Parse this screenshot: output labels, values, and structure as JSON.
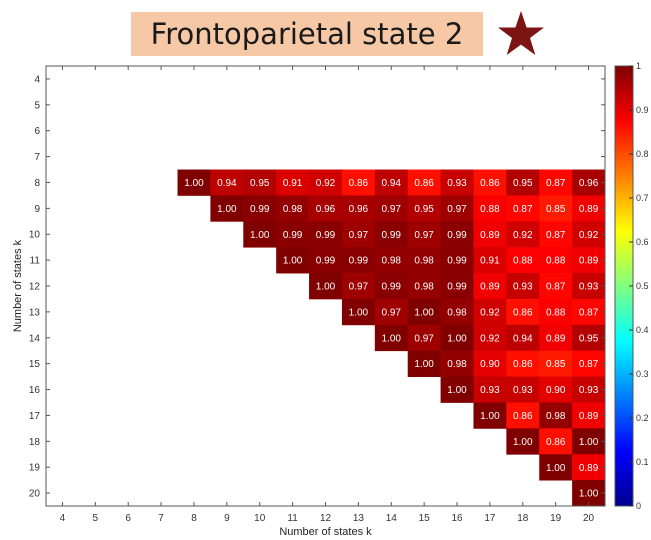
{
  "header": {
    "title": "Frontoparietal state 2",
    "marker_icon": "star-icon",
    "marker_color": "#7d1414"
  },
  "chart_data": {
    "type": "heatmap",
    "title": "Frontoparietal state 2",
    "xlabel": "Number of states k",
    "ylabel": "Number of states k",
    "x": [
      4,
      5,
      6,
      7,
      8,
      9,
      10,
      11,
      12,
      13,
      14,
      15,
      16,
      17,
      18,
      19,
      20
    ],
    "y": [
      4,
      5,
      6,
      7,
      8,
      9,
      10,
      11,
      12,
      13,
      14,
      15,
      16,
      17,
      18,
      19,
      20
    ],
    "y_direction": "top-to-bottom",
    "colorbar": {
      "range": [
        0,
        1
      ],
      "ticks": [
        "0",
        "0.1",
        "0.2",
        "0.3",
        "0.4",
        "0.5",
        "0.6",
        "0.7",
        "0.8",
        "0.9",
        "1"
      ],
      "colormap": "jet",
      "placement": "right"
    },
    "grid": false,
    "rows": [
      {
        "k": 8,
        "start_x": 8,
        "values": [
          "1.00",
          "0.94",
          "0.95",
          "0.91",
          "0.92",
          "0.86",
          "0.94",
          "0.86",
          "0.93",
          "0.86",
          "0.95",
          "0.87",
          "0.96"
        ]
      },
      {
        "k": 9,
        "start_x": 9,
        "values": [
          "1.00",
          "0.99",
          "0.98",
          "0.96",
          "0.96",
          "0.97",
          "0.95",
          "0.97",
          "0.88",
          "0.87",
          "0.85",
          "0.89"
        ]
      },
      {
        "k": 10,
        "start_x": 10,
        "values": [
          "1.00",
          "0.99",
          "0.99",
          "0.97",
          "0.99",
          "0.97",
          "0.99",
          "0.89",
          "0.92",
          "0.87",
          "0.92"
        ]
      },
      {
        "k": 11,
        "start_x": 11,
        "values": [
          "1.00",
          "0.99",
          "0.99",
          "0.98",
          "0.98",
          "0.99",
          "0.91",
          "0.88",
          "0.88",
          "0.89"
        ]
      },
      {
        "k": 12,
        "start_x": 12,
        "values": [
          "1.00",
          "0.97",
          "0.99",
          "0.98",
          "0.99",
          "0.89",
          "0.93",
          "0.87",
          "0.93"
        ]
      },
      {
        "k": 13,
        "start_x": 13,
        "values": [
          "1.00",
          "0.97",
          "1.00",
          "0.98",
          "0.92",
          "0.86",
          "0.88",
          "0.87"
        ]
      },
      {
        "k": 14,
        "start_x": 14,
        "values": [
          "1.00",
          "0.97",
          "1.00",
          "0.92",
          "0.94",
          "0.89",
          "0.95"
        ]
      },
      {
        "k": 15,
        "start_x": 15,
        "values": [
          "1.00",
          "0.98",
          "0.90",
          "0.86",
          "0.85",
          "0.87"
        ]
      },
      {
        "k": 16,
        "start_x": 16,
        "values": [
          "1.00",
          "0.93",
          "0.93",
          "0.90",
          "0.93"
        ]
      },
      {
        "k": 17,
        "start_x": 17,
        "values": [
          "1.00",
          "0.86",
          "0.98",
          "0.89"
        ]
      },
      {
        "k": 18,
        "start_x": 18,
        "values": [
          "1.00",
          "0.86",
          "1.00"
        ]
      },
      {
        "k": 19,
        "start_x": 19,
        "values": [
          "1.00",
          "0.89"
        ]
      },
      {
        "k": 20,
        "start_x": 20,
        "values": [
          "1.00"
        ]
      }
    ]
  }
}
